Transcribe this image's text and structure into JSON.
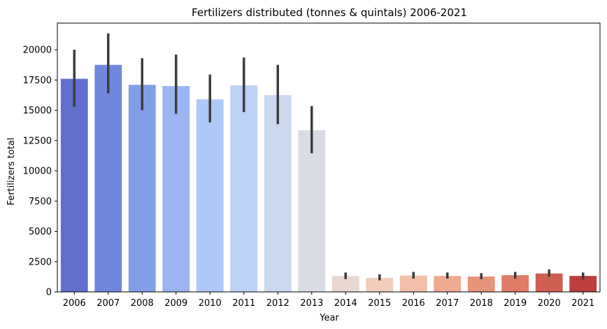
{
  "chart_data": {
    "type": "bar",
    "title": "Fertilizers distributed (tonnes & quintals) 2006-2021",
    "xlabel": "Year",
    "ylabel": "Fertilizers total",
    "categories": [
      "2006",
      "2007",
      "2008",
      "2009",
      "2010",
      "2011",
      "2012",
      "2013",
      "2014",
      "2015",
      "2016",
      "2017",
      "2018",
      "2019",
      "2020",
      "2021"
    ],
    "values": [
      17600,
      18750,
      17100,
      17000,
      15900,
      17050,
      16250,
      13350,
      1300,
      1150,
      1350,
      1320,
      1270,
      1380,
      1520,
      1320
    ],
    "error_low": [
      15300,
      16400,
      15000,
      14700,
      14000,
      14850,
      13850,
      11450,
      1050,
      950,
      1100,
      1100,
      1050,
      1100,
      1250,
      1050
    ],
    "error_high": [
      20000,
      21350,
      19300,
      19600,
      17950,
      19350,
      18750,
      15350,
      1600,
      1450,
      1650,
      1600,
      1550,
      1650,
      1850,
      1600
    ],
    "colors": [
      "#6070cc",
      "#7088db",
      "#809fe6",
      "#9ab5f2",
      "#aec8f7",
      "#bcd1f5",
      "#cbd8f0",
      "#d9dce2",
      "#e8d8d0",
      "#f0cdbd",
      "#f2bea8",
      "#efa990",
      "#e8947b",
      "#de7b66",
      "#cf5f51",
      "#bd3f3d"
    ],
    "ylim": [
      0,
      22200
    ],
    "yticks": [
      0,
      2500,
      5000,
      7500,
      10000,
      12500,
      15000,
      17500,
      20000
    ],
    "grid": false,
    "legend": "none"
  }
}
